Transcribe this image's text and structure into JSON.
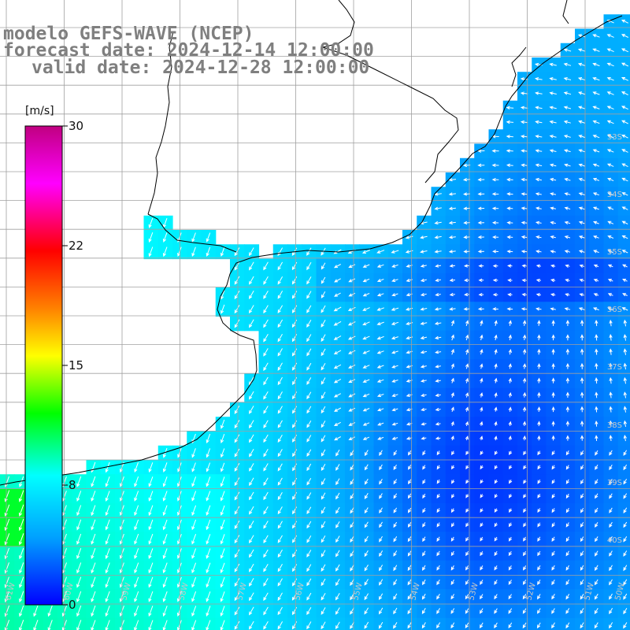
{
  "title": {
    "line1": "modelo GEFS-WAVE (NCEP)",
    "line2": "forecast date: 2024-12-14 12:00:00",
    "line3": "valid date: 2024-12-28 12:00:00"
  },
  "colorbar": {
    "unit": "[m/s]",
    "ticks": [
      "30",
      "22",
      "15",
      "8",
      "0"
    ],
    "stops": [
      "#0000ff",
      "#00a0ff",
      "#00ffff",
      "#00ff00",
      "#ffff00",
      "#ff8000",
      "#ff0000",
      "#ff00ff",
      "#c00080"
    ]
  },
  "map": {
    "lat_labels": [
      "33S",
      "34S",
      "35S",
      "36S",
      "37S",
      "38S",
      "39S",
      "40S"
    ],
    "lon_labels": [
      "61W",
      "60W",
      "59W",
      "58W",
      "57W",
      "56W",
      "55W",
      "54W",
      "53W",
      "52W",
      "51W",
      "50W"
    ],
    "land_color": "#ffffff",
    "grid_color": "#a0a0a0",
    "arrow_color": "#ffffff"
  }
}
